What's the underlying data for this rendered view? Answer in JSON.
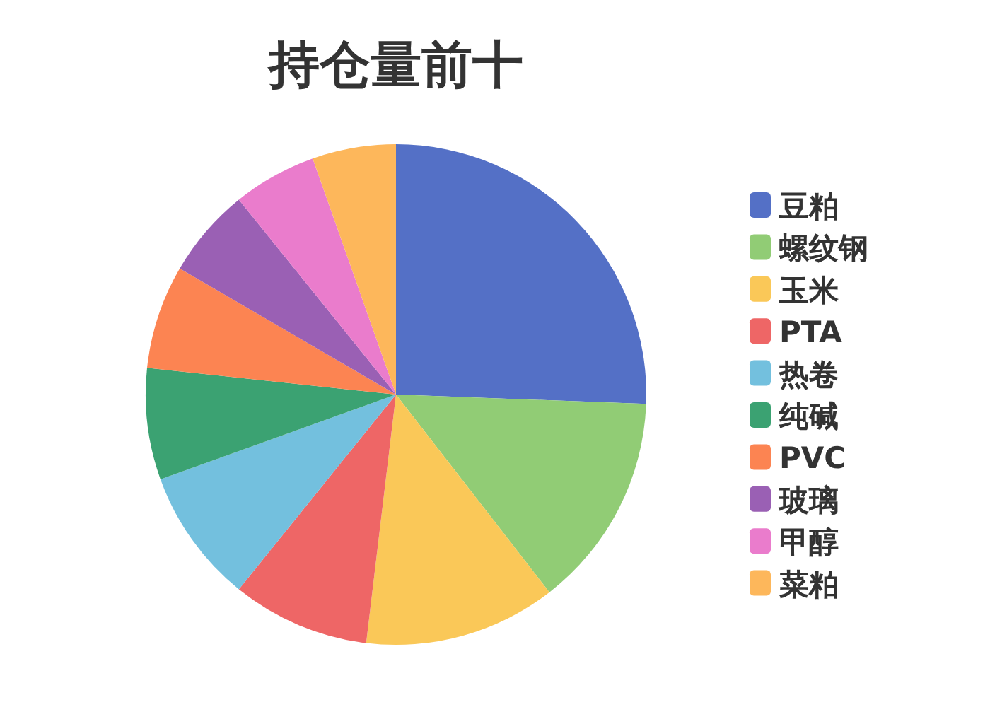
{
  "chart_data": {
    "type": "pie",
    "title": "持仓量前十",
    "categories": [
      "豆粕",
      "螺纹钢",
      "玉米",
      "PTA",
      "热卷",
      "纯碱",
      "PVC",
      "玻璃",
      "甲醇",
      "菜粕"
    ],
    "values": [
      25.6,
      13.9,
      12.4,
      8.9,
      8.7,
      7.2,
      6.7,
      5.8,
      5.4,
      5.4
    ],
    "colors": [
      "#5470c6",
      "#91cc75",
      "#fac858",
      "#ee6666",
      "#73c0de",
      "#3ba272",
      "#fc8452",
      "#9a60b4",
      "#ea7ccc",
      "#fdb75b"
    ],
    "legend": "right"
  }
}
